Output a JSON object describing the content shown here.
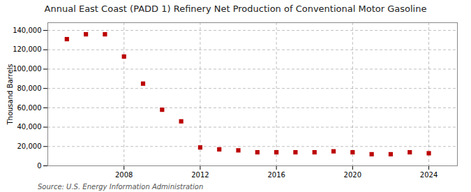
{
  "chart_data": {
    "type": "scatter",
    "title": "Annual East Coast (PADD 1) Refinery Net Production of Conventional Motor Gasoline",
    "ylabel": "Thousand Barrels",
    "source": "Source: U.S. Energy Information Administration",
    "x": [
      2005,
      2006,
      2007,
      2008,
      2009,
      2010,
      2011,
      2012,
      2013,
      2014,
      2015,
      2016,
      2017,
      2018,
      2019,
      2020,
      2021,
      2022,
      2023,
      2024
    ],
    "values": [
      131000,
      136000,
      136000,
      113000,
      85000,
      58000,
      46000,
      19000,
      17000,
      16000,
      14000,
      14000,
      14000,
      14000,
      15000,
      14000,
      12000,
      12000,
      14000,
      13000
    ],
    "color": "#bb0000",
    "marker": "square",
    "xlim": [
      2004.0,
      2025.5
    ],
    "xticks": [
      2008,
      2012,
      2016,
      2020,
      2024
    ],
    "ylim": [
      0,
      148000
    ],
    "yticks": [
      0,
      {
        "value": 20000,
        "label": "20,000"
      },
      {
        "value": 40000,
        "label": "40,000"
      },
      {
        "value": 60000,
        "label": "60,000"
      },
      {
        "value": 80000,
        "label": "80,000"
      },
      {
        "value": 100000,
        "label": "100,000"
      },
      {
        "value": 120000,
        "label": "120,000"
      },
      {
        "value": 140000,
        "label": "140,000"
      }
    ],
    "grid": true
  }
}
